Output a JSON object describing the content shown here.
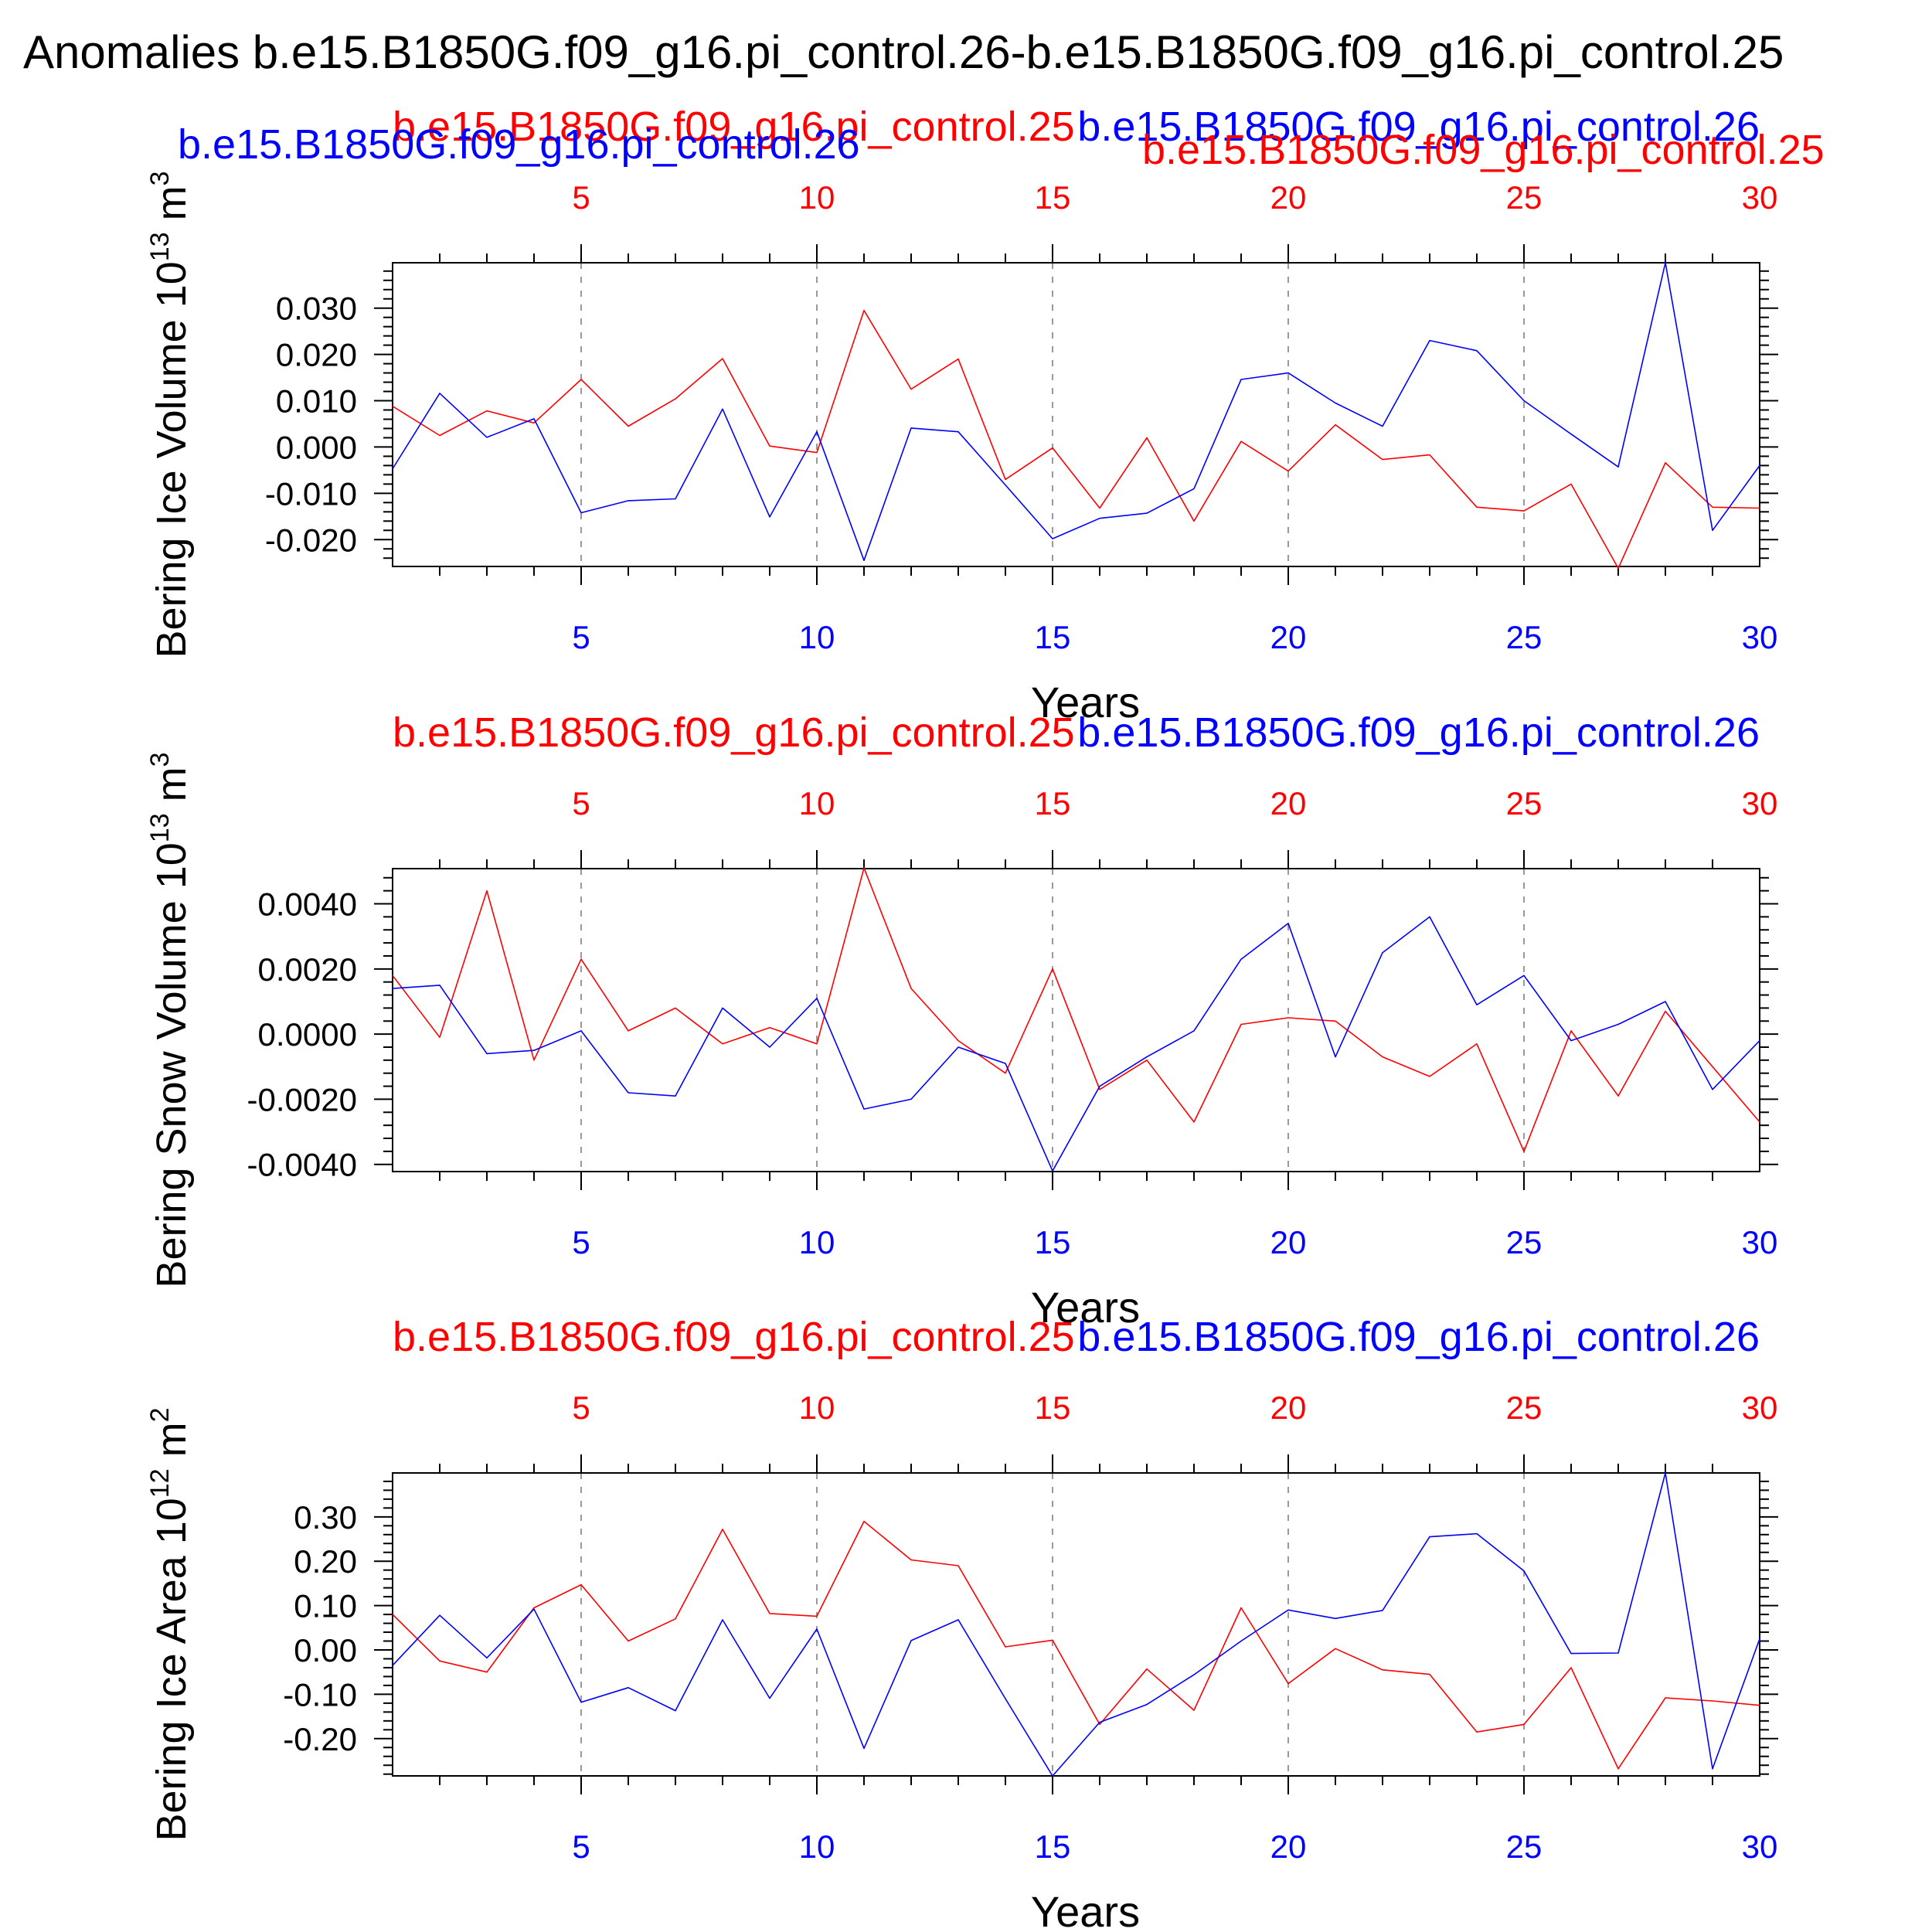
{
  "title": "Anomalies b.e15.B1850G.f09_g16.pi_control.26-b.e15.B1850G.f09_g16.pi_control.25",
  "colors": {
    "red": "#ff0000",
    "blue": "#0000ff",
    "frame": "#000000",
    "grid": "#999999"
  },
  "x_ticks": [
    "5",
    "10",
    "15",
    "20",
    "25",
    "30"
  ],
  "x_tick_values": [
    5,
    10,
    15,
    20,
    25,
    30
  ],
  "xlabel": "Years",
  "chart_data": [
    {
      "type": "line",
      "ylabel": "Bering Ice Volume 10",
      "ylabel_exp": "13",
      "ylabel_unit": "m",
      "ylabel_unit_exp": "3",
      "xlim": [
        1,
        30
      ],
      "ylim": [
        -0.0258,
        0.0398
      ],
      "yticks": [
        -0.02,
        -0.01,
        0.0,
        0.01,
        0.02,
        0.03
      ],
      "ytick_labels": [
        "-0.020",
        "-0.010",
        "0.000",
        "0.010",
        "0.020",
        "0.030"
      ],
      "grid": "dashed vertical at x ticks",
      "x": [
        1,
        2,
        3,
        4,
        5,
        6,
        7,
        8,
        9,
        10,
        11,
        12,
        13,
        14,
        15,
        16,
        17,
        18,
        19,
        20,
        21,
        22,
        23,
        24,
        25,
        26,
        27,
        28,
        29,
        30
      ],
      "series": [
        {
          "name": "b.e15.B1850G.f09_g16.pi_control.25",
          "color": "#ff0000",
          "values": [
            0.0088,
            0.0025,
            0.0078,
            0.0052,
            0.0146,
            0.0045,
            0.0104,
            0.0191,
            0.0002,
            -0.0012,
            0.0295,
            0.0125,
            0.019,
            -0.007,
            -0.0002,
            -0.0132,
            0.002,
            -0.016,
            0.0012,
            -0.0052,
            0.0048,
            -0.0027,
            -0.0017,
            -0.013,
            -0.0138,
            -0.008,
            -0.0262,
            -0.0034,
            -0.013,
            -0.0132
          ]
        },
        {
          "name": "b.e15.B1850G.f09_g16.pi_control.26",
          "color": "#0000ff",
          "values": [
            -0.0047,
            0.0116,
            0.0021,
            0.0061,
            -0.0142,
            -0.0116,
            -0.0112,
            0.0082,
            -0.0151,
            0.0033,
            -0.0245,
            0.0041,
            0.0033,
            -0.0082,
            -0.0198,
            -0.0154,
            -0.0143,
            -0.009,
            0.0146,
            0.016,
            0.0095,
            0.0045,
            0.023,
            0.0208,
            0.01,
            0.0028,
            -0.0043,
            0.0398,
            -0.018,
            -0.004
          ]
        }
      ]
    },
    {
      "type": "line",
      "ylabel": "Bering Snow Volume 10",
      "ylabel_exp": "13",
      "ylabel_unit": "m",
      "ylabel_unit_exp": "3",
      "xlim": [
        1,
        30
      ],
      "ylim": [
        -0.00422,
        0.00508
      ],
      "yticks": [
        -0.004,
        -0.002,
        0.0,
        0.002,
        0.004
      ],
      "ytick_labels": [
        "-0.0040",
        "-0.0020",
        "0.0000",
        "0.0020",
        "0.0040"
      ],
      "grid": "dashed vertical at x ticks",
      "x": [
        1,
        2,
        3,
        4,
        5,
        6,
        7,
        8,
        9,
        10,
        11,
        12,
        13,
        14,
        15,
        16,
        17,
        18,
        19,
        20,
        21,
        22,
        23,
        24,
        25,
        26,
        27,
        28,
        29,
        30
      ],
      "series": [
        {
          "name": "b.e15.B1850G.f09_g16.pi_control.25",
          "color": "#ff0000",
          "values": [
            0.0018,
            -0.0001,
            0.0044,
            -0.0008,
            0.0023,
            0.0001,
            0.0008,
            -0.0003,
            0.0002,
            -0.0003,
            0.0051,
            0.0014,
            -0.0002,
            -0.0012,
            0.002,
            -0.0017,
            -0.0008,
            -0.0027,
            0.0003,
            0.0005,
            0.0004,
            -0.0007,
            -0.0013,
            -0.0003,
            -0.0036,
            0.0001,
            -0.0019,
            0.0007,
            -0.001,
            -0.0027
          ]
        },
        {
          "name": "b.e15.B1850G.f09_g16.pi_control.26",
          "color": "#0000ff",
          "values": [
            0.0014,
            0.0015,
            -0.0006,
            -0.0005,
            0.0001,
            -0.0018,
            -0.0019,
            0.0008,
            -0.0004,
            0.0011,
            -0.0023,
            -0.002,
            -0.0004,
            -0.0009,
            -0.0042,
            -0.0016,
            -0.0007,
            0.0001,
            0.0023,
            0.0034,
            -0.0007,
            0.0025,
            0.0036,
            0.0009,
            0.0018,
            -0.0002,
            0.0003,
            0.001,
            -0.0017,
            -0.0002
          ]
        }
      ]
    },
    {
      "type": "line",
      "ylabel": "Bering Ice Area 10",
      "ylabel_exp": "12",
      "ylabel_unit": "m",
      "ylabel_unit_exp": "2",
      "xlim": [
        1,
        30
      ],
      "ylim": [
        -0.284,
        0.399
      ],
      "yticks": [
        -0.2,
        -0.1,
        0.0,
        0.1,
        0.2,
        0.3
      ],
      "ytick_labels": [
        "-0.20",
        "-0.10",
        "0.00",
        "0.10",
        "0.20",
        "0.30"
      ],
      "grid": "dashed vertical at x ticks",
      "x": [
        1,
        2,
        3,
        4,
        5,
        6,
        7,
        8,
        9,
        10,
        11,
        12,
        13,
        14,
        15,
        16,
        17,
        18,
        19,
        20,
        21,
        22,
        23,
        24,
        25,
        26,
        27,
        28,
        29,
        30
      ],
      "series": [
        {
          "name": "b.e15.B1850G.f09_g16.pi_control.25",
          "color": "#ff0000",
          "values": [
            0.08,
            -0.025,
            -0.05,
            0.095,
            0.147,
            0.02,
            0.07,
            0.272,
            0.082,
            0.076,
            0.29,
            0.203,
            0.19,
            0.007,
            0.022,
            -0.168,
            -0.043,
            -0.136,
            0.095,
            -0.076,
            0.003,
            -0.045,
            -0.055,
            -0.185,
            -0.168,
            -0.04,
            -0.268,
            -0.108,
            -0.115,
            -0.125
          ]
        },
        {
          "name": "b.e15.B1850G.f09_g16.pi_control.26",
          "color": "#0000ff",
          "values": [
            -0.035,
            0.078,
            -0.018,
            0.092,
            -0.118,
            -0.085,
            -0.137,
            0.068,
            -0.109,
            0.047,
            -0.222,
            0.021,
            0.068,
            -0.11,
            -0.284,
            -0.163,
            -0.123,
            -0.056,
            0.02,
            0.09,
            0.071,
            0.089,
            0.255,
            0.262,
            0.178,
            -0.008,
            -0.007,
            0.399,
            -0.268,
            0.025
          ]
        }
      ]
    }
  ]
}
